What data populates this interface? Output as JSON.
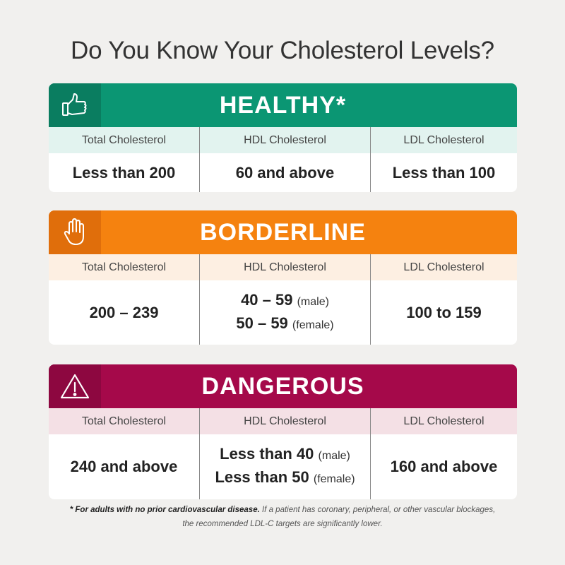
{
  "title": "Do You Know Your Cholesterol Levels?",
  "colors": {
    "healthy": "#0b9673",
    "healthy_dark": "#0a7d60",
    "borderline": "#f5820f",
    "borderline_dark": "#e06e0b",
    "dangerous": "#a5094a",
    "dangerous_dark": "#8d0740"
  },
  "columns": [
    "Total Cholesterol",
    "HDL Cholesterol",
    "LDL Cholesterol"
  ],
  "healthy": {
    "label": "HEALTHY*",
    "icon": "thumbs-up-icon",
    "total": "Less than 200",
    "hdl": "60 and above",
    "ldl": "Less than 100"
  },
  "borderline": {
    "label": "BORDERLINE",
    "icon": "raised-hand-icon",
    "total": "200 – 239",
    "hdl_male": "40 – 59",
    "hdl_female": "50 – 59",
    "ldl": "100 to 159"
  },
  "dangerous": {
    "label": "DANGEROUS",
    "icon": "warning-icon",
    "total": "240 and above",
    "hdl_male": "Less than 40",
    "hdl_female": "Less than 50",
    "ldl": "160 and above"
  },
  "male": "(male)",
  "female": "(female)",
  "footnote": {
    "bold": "* For adults with no prior cardiovascular disease.",
    "rest": " If a patient has coronary, peripheral, or other vascular blockages,",
    "line2": "the recommended LDL-C targets are significantly lower."
  }
}
